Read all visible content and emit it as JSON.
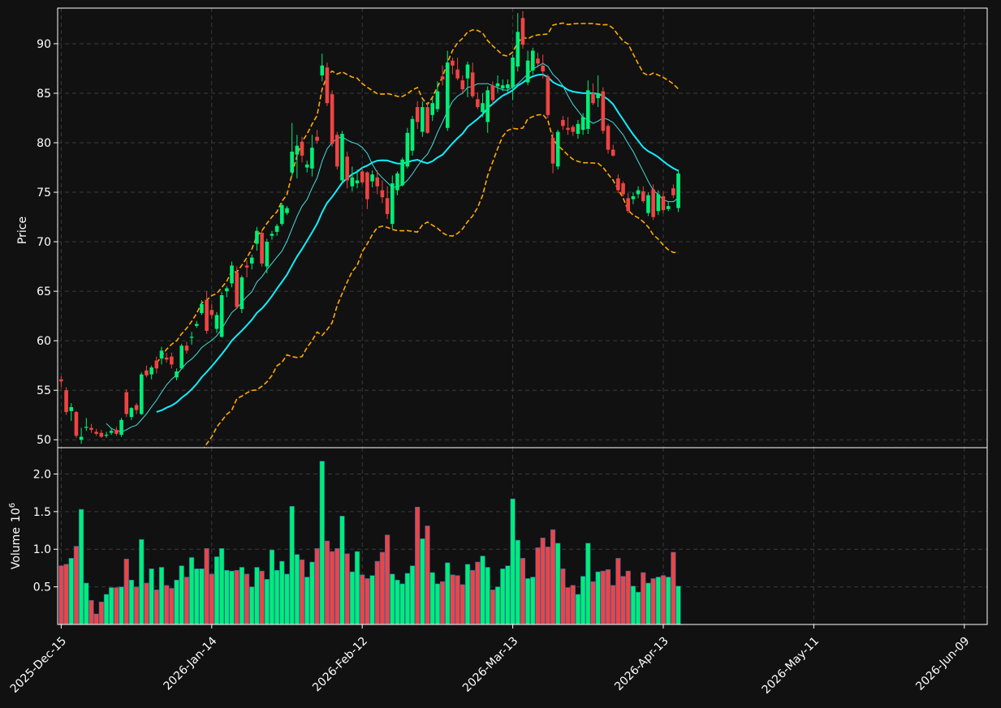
{
  "chart_data": {
    "type": "candlestick",
    "price_panel": {
      "ylabel": "Price",
      "ylim": [
        49.2,
        93.6
      ],
      "yticks": [
        50,
        55,
        60,
        65,
        70,
        75,
        80,
        85,
        90
      ]
    },
    "volume_panel": {
      "ylabel": "Volume",
      "ylabel_exponent": "6",
      "ylim": [
        0,
        2.35
      ],
      "yticks": [
        0.5,
        1.0,
        1.5,
        2.0
      ],
      "ytick_labels": [
        "0.5",
        "1.0",
        "1.5",
        "2.0"
      ]
    },
    "xtick_labels": [
      "2025-Dec-15",
      "2026-Jan-14",
      "2026-Feb-12",
      "2026-Mar-13",
      "2026-Apr-13",
      "2026-May-11",
      "2026-Jun-09"
    ],
    "xtick_indices": [
      0,
      30,
      60,
      90,
      120,
      150,
      180
    ],
    "grid": true,
    "colors": {
      "background": "#111111",
      "up": "#00ee77",
      "down": "#ee4444",
      "ma_short": "#44dddd",
      "ma_long": "#11eeff",
      "bollinger": "#ffaa00",
      "grid": "#3a3a3a",
      "text": "#ffffff"
    },
    "candles": [
      [
        56.1,
        56.4,
        55.3,
        55.9
      ],
      [
        55.0,
        55.3,
        52.5,
        52.8
      ],
      [
        52.9,
        53.7,
        51.9,
        53.3
      ],
      [
        52.8,
        52.9,
        50.2,
        50.4
      ],
      [
        50.0,
        51.2,
        49.6,
        50.3
      ],
      [
        51.2,
        52.2,
        50.9,
        51.3
      ],
      [
        51.2,
        51.6,
        50.7,
        51.0
      ],
      [
        50.8,
        51.1,
        50.4,
        50.6
      ],
      [
        50.7,
        51.0,
        50.2,
        50.3
      ],
      [
        50.4,
        50.8,
        50.2,
        50.5
      ],
      [
        50.7,
        51.2,
        50.5,
        50.9
      ],
      [
        51.0,
        51.3,
        50.4,
        50.6
      ],
      [
        50.5,
        52.2,
        50.3,
        52.0
      ],
      [
        54.8,
        55.1,
        52.3,
        52.6
      ],
      [
        52.3,
        53.3,
        52.0,
        53.2
      ],
      [
        53.5,
        53.7,
        52.6,
        53.0
      ],
      [
        52.6,
        56.8,
        52.5,
        56.6
      ],
      [
        57.0,
        57.5,
        56.3,
        56.5
      ],
      [
        56.6,
        57.5,
        56.1,
        57.3
      ],
      [
        58.0,
        58.4,
        56.7,
        57.2
      ],
      [
        58.2,
        59.4,
        57.6,
        59.0
      ],
      [
        58.3,
        58.8,
        57.8,
        58.1
      ],
      [
        58.4,
        58.8,
        57.2,
        57.6
      ],
      [
        56.3,
        57.2,
        56.0,
        56.9
      ],
      [
        57.2,
        59.7,
        57.1,
        59.5
      ],
      [
        59.5,
        59.9,
        58.7,
        59.0
      ],
      [
        60.3,
        60.9,
        59.6,
        60.4
      ],
      [
        61.5,
        62.0,
        61.3,
        61.7
      ],
      [
        62.8,
        64.1,
        62.6,
        63.7
      ],
      [
        64.1,
        65.0,
        60.7,
        61.0
      ],
      [
        63.1,
        63.7,
        62.2,
        62.6
      ],
      [
        61.2,
        62.9,
        60.8,
        62.6
      ],
      [
        60.4,
        64.9,
        60.3,
        64.6
      ],
      [
        65.0,
        65.5,
        64.4,
        65.3
      ],
      [
        65.8,
        68.0,
        65.4,
        67.6
      ],
      [
        66.9,
        67.5,
        63.2,
        63.4
      ],
      [
        63.2,
        66.6,
        62.8,
        66.4
      ],
      [
        67.6,
        68.1,
        66.4,
        67.4
      ],
      [
        67.8,
        68.7,
        67.2,
        68.4
      ],
      [
        69.8,
        71.5,
        69.1,
        71.1
      ],
      [
        70.9,
        71.2,
        67.5,
        67.8
      ],
      [
        67.5,
        70.3,
        66.8,
        70.0
      ],
      [
        70.6,
        71.1,
        70.2,
        70.8
      ],
      [
        71.0,
        71.8,
        70.6,
        71.6
      ],
      [
        71.8,
        73.9,
        71.6,
        73.7
      ],
      [
        72.9,
        73.6,
        72.7,
        73.4
      ],
      [
        77.0,
        82.0,
        76.6,
        79.1
      ],
      [
        78.8,
        80.8,
        76.4,
        79.7
      ],
      [
        80.1,
        80.6,
        78.0,
        78.7
      ],
      [
        77.5,
        78.2,
        77.0,
        77.8
      ],
      [
        77.4,
        80.8,
        76.6,
        79.5
      ],
      [
        80.6,
        81.3,
        79.9,
        80.2
      ],
      [
        86.8,
        89.0,
        86.2,
        87.8
      ],
      [
        87.6,
        88.1,
        83.7,
        84.0
      ],
      [
        84.9,
        85.3,
        79.6,
        79.9
      ],
      [
        80.8,
        81.1,
        77.3,
        77.6
      ],
      [
        76.2,
        81.2,
        76.0,
        80.9
      ],
      [
        78.6,
        79.1,
        75.4,
        76.2
      ],
      [
        75.6,
        77.6,
        75.1,
        76.5
      ],
      [
        75.9,
        77.3,
        75.4,
        76.2
      ],
      [
        77.1,
        77.5,
        75.8,
        76.0
      ],
      [
        77.0,
        77.1,
        73.3,
        74.3
      ],
      [
        76.1,
        77.2,
        75.5,
        76.8
      ],
      [
        76.5,
        77.2,
        74.8,
        75.6
      ],
      [
        75.2,
        76.2,
        73.9,
        74.5
      ],
      [
        74.4,
        75.6,
        72.3,
        72.8
      ],
      [
        71.8,
        76.7,
        71.3,
        75.9
      ],
      [
        75.2,
        77.1,
        74.7,
        76.9
      ],
      [
        75.7,
        78.5,
        75.6,
        78.3
      ],
      [
        77.6,
        81.5,
        77.4,
        81.0
      ],
      [
        79.2,
        82.7,
        78.7,
        82.4
      ],
      [
        83.6,
        84.2,
        81.4,
        82.1
      ],
      [
        81.1,
        84.2,
        80.6,
        83.6
      ],
      [
        83.6,
        84.1,
        80.9,
        81.0
      ],
      [
        82.8,
        84.5,
        82.2,
        84.0
      ],
      [
        83.4,
        86.2,
        83.1,
        85.2
      ],
      [
        86.7,
        87.8,
        85.8,
        86.4
      ],
      [
        81.5,
        89.3,
        81.2,
        88.1
      ],
      [
        88.3,
        88.6,
        86.9,
        87.8
      ],
      [
        87.4,
        88.6,
        86.3,
        86.5
      ],
      [
        86.3,
        86.8,
        84.9,
        85.4
      ],
      [
        86.5,
        88.2,
        84.6,
        87.9
      ],
      [
        87.1,
        88.1,
        84.5,
        84.7
      ],
      [
        84.4,
        85.1,
        83.4,
        83.6
      ],
      [
        83.1,
        85.0,
        82.6,
        84.0
      ],
      [
        82.1,
        85.7,
        81.0,
        85.3
      ],
      [
        85.8,
        86.2,
        83.9,
        84.3
      ],
      [
        85.7,
        86.8,
        85.1,
        86.0
      ],
      [
        85.5,
        86.4,
        85.2,
        85.8
      ],
      [
        85.5,
        86.4,
        85.1,
        85.9
      ],
      [
        85.6,
        88.9,
        84.3,
        88.6
      ],
      [
        87.7,
        93.1,
        87.2,
        91.2
      ],
      [
        92.6,
        93.3,
        89.5,
        89.9
      ],
      [
        86.1,
        89.3,
        85.8,
        88.3
      ],
      [
        87.3,
        89.6,
        86.9,
        89.3
      ],
      [
        88.5,
        89.1,
        87.6,
        88.0
      ],
      [
        87.8,
        88.9,
        86.5,
        87.2
      ],
      [
        86.7,
        86.9,
        82.5,
        82.8
      ],
      [
        80.5,
        81.1,
        76.9,
        77.9
      ],
      [
        77.6,
        81.3,
        77.3,
        81.1
      ],
      [
        82.3,
        82.7,
        81.3,
        81.7
      ],
      [
        81.5,
        82.6,
        80.8,
        81.3
      ],
      [
        81.6,
        81.8,
        80.7,
        81.1
      ],
      [
        80.9,
        82.3,
        80.4,
        81.9
      ],
      [
        81.3,
        83.0,
        80.8,
        82.6
      ],
      [
        81.4,
        86.3,
        80.9,
        85.3
      ],
      [
        85.0,
        86.0,
        83.8,
        84.0
      ],
      [
        84.5,
        86.8,
        83.6,
        85.0
      ],
      [
        85.2,
        85.6,
        80.9,
        81.2
      ],
      [
        81.7,
        81.9,
        78.9,
        79.3
      ],
      [
        79.3,
        79.8,
        78.6,
        78.7
      ],
      [
        76.4,
        76.8,
        74.9,
        75.2
      ],
      [
        75.9,
        76.1,
        74.6,
        74.8
      ],
      [
        74.4,
        74.9,
        72.9,
        73.1
      ],
      [
        74.3,
        75.0,
        73.8,
        74.6
      ],
      [
        74.8,
        75.6,
        74.4,
        75.2
      ],
      [
        75.1,
        75.6,
        73.9,
        74.1
      ],
      [
        72.9,
        75.0,
        72.6,
        74.7
      ],
      [
        75.3,
        75.8,
        72.2,
        72.5
      ],
      [
        73.1,
        75.2,
        72.7,
        74.8
      ],
      [
        74.6,
        75.1,
        72.9,
        73.2
      ],
      [
        73.3,
        74.1,
        73.1,
        73.6
      ],
      [
        75.4,
        75.8,
        74.4,
        74.7
      ],
      [
        73.4,
        77.3,
        73.0,
        76.9
      ]
    ],
    "volume_millions": [
      0.78,
      0.8,
      0.88,
      1.04,
      1.53,
      0.55,
      0.32,
      0.14,
      0.3,
      0.4,
      0.49,
      0.49,
      0.5,
      0.87,
      0.59,
      0.5,
      1.13,
      0.55,
      0.74,
      0.46,
      0.76,
      0.52,
      0.48,
      0.59,
      0.78,
      0.63,
      0.89,
      0.74,
      0.74,
      1.01,
      0.67,
      0.9,
      1.01,
      0.72,
      0.71,
      0.72,
      0.76,
      0.67,
      0.5,
      0.76,
      0.71,
      0.6,
      0.99,
      0.72,
      0.84,
      0.67,
      1.57,
      0.93,
      0.86,
      0.63,
      0.83,
      1.01,
      2.17,
      1.11,
      0.97,
      1.01,
      1.44,
      0.94,
      0.7,
      0.97,
      0.66,
      0.61,
      0.65,
      0.84,
      0.96,
      1.19,
      0.67,
      0.59,
      0.54,
      0.68,
      0.78,
      1.56,
      1.14,
      1.31,
      0.69,
      0.54,
      0.57,
      0.82,
      0.66,
      0.65,
      0.53,
      0.8,
      0.72,
      0.83,
      0.91,
      0.76,
      0.46,
      0.5,
      0.74,
      0.78,
      1.67,
      1.12,
      0.88,
      0.61,
      0.63,
      1.02,
      1.15,
      1.03,
      1.26,
      1.08,
      0.74,
      0.49,
      0.52,
      0.4,
      0.64,
      1.08,
      0.57,
      0.7,
      0.71,
      0.73,
      0.52,
      0.88,
      0.64,
      0.71,
      0.51,
      0.43,
      0.69,
      0.55,
      0.61,
      0.63,
      0.65,
      0.63,
      0.96,
      0.51
    ]
  }
}
